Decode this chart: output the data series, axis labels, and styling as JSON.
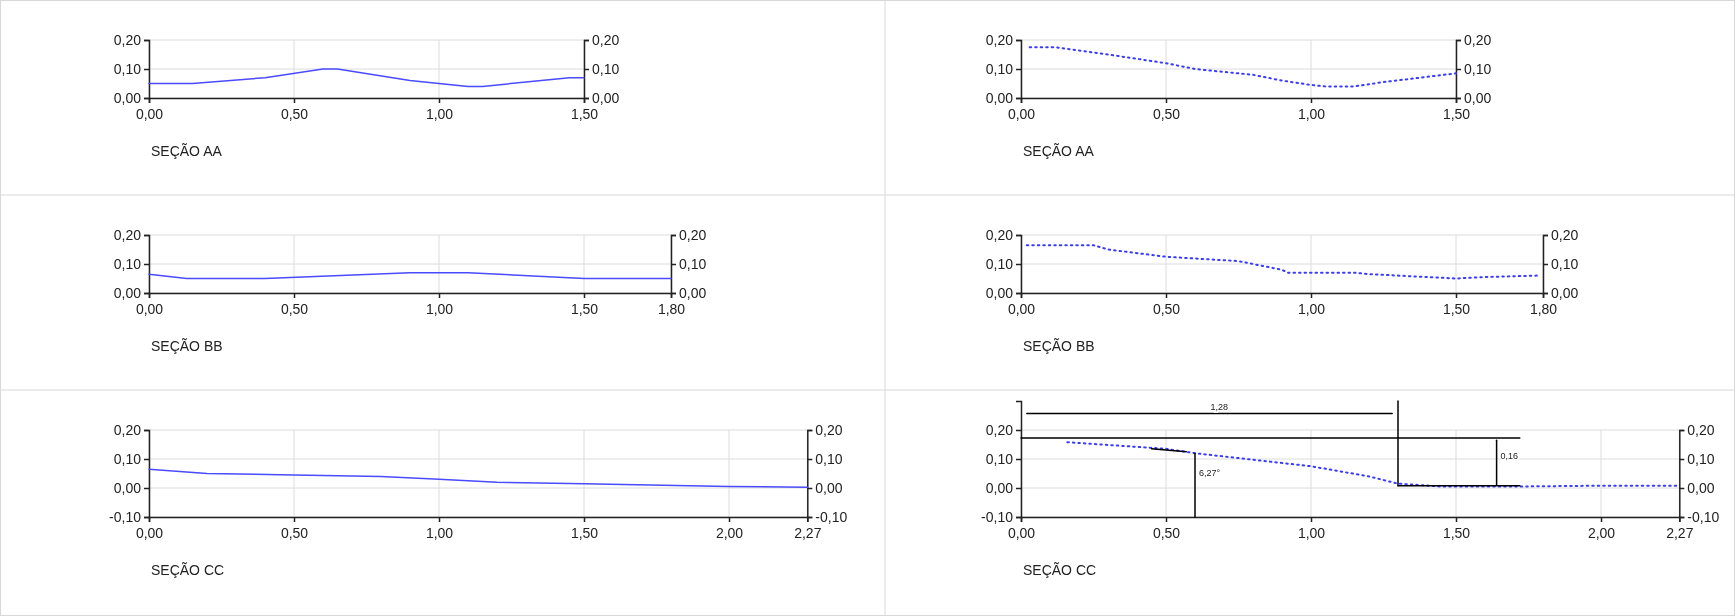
{
  "chart_data": [
    {
      "type": "line",
      "xlabel": "SEÇÃO AA",
      "grid": true,
      "line_style": "solid",
      "xlim": [
        0,
        1.5
      ],
      "xticks": [
        {
          "value": 0,
          "label": "0,00"
        },
        {
          "value": 0.5,
          "label": "0,50"
        },
        {
          "value": 1,
          "label": "1,00"
        },
        {
          "value": 1.5,
          "label": "1,50"
        }
      ],
      "ylim": [
        0,
        0.2
      ],
      "yticks": [
        {
          "value": 0,
          "label": "0,00"
        },
        {
          "value": 0.1,
          "label": "0,10"
        },
        {
          "value": 0.2,
          "label": "0,20"
        }
      ],
      "y2lim": [
        0,
        0.2
      ],
      "y2ticks": [
        {
          "value": 0,
          "label": "0,00"
        },
        {
          "value": 0.1,
          "label": "0,10"
        },
        {
          "value": 0.2,
          "label": "0,20"
        }
      ],
      "series": [
        {
          "color": "#4a4aff",
          "x": [
            0,
            0.15,
            0.4,
            0.6,
            0.65,
            0.9,
            1.1,
            1.15,
            1.45,
            1.5
          ],
          "values": [
            0.05,
            0.05,
            0.07,
            0.1,
            0.1,
            0.06,
            0.04,
            0.04,
            0.07,
            0.07
          ]
        }
      ]
    },
    {
      "type": "line",
      "xlabel": "SEÇÃO AA",
      "grid": true,
      "line_style": "dotted",
      "xlim": [
        0,
        1.5
      ],
      "xticks": [
        {
          "value": 0,
          "label": "0,00"
        },
        {
          "value": 0.5,
          "label": "0,50"
        },
        {
          "value": 1,
          "label": "1,00"
        },
        {
          "value": 1.5,
          "label": "1,50"
        }
      ],
      "ylim": [
        0,
        0.2
      ],
      "yticks": [
        {
          "value": 0,
          "label": "0,00"
        },
        {
          "value": 0.1,
          "label": "0,10"
        },
        {
          "value": 0.2,
          "label": "0,20"
        }
      ],
      "y2lim": [
        0,
        0.2
      ],
      "y2ticks": [
        {
          "value": 0,
          "label": "0,00"
        },
        {
          "value": 0.1,
          "label": "0,10"
        },
        {
          "value": 0.2,
          "label": "0,20"
        }
      ],
      "series": [
        {
          "color": "#3a3aff",
          "x": [
            0.03,
            0.12,
            0.3,
            0.5,
            0.6,
            0.8,
            0.9,
            1.0,
            1.05,
            1.15,
            1.25,
            1.5
          ],
          "values": [
            0.175,
            0.175,
            0.15,
            0.12,
            0.1,
            0.08,
            0.06,
            0.045,
            0.04,
            0.04,
            0.055,
            0.085
          ]
        }
      ]
    },
    {
      "type": "line",
      "xlabel": "SEÇÃO BB",
      "grid": true,
      "line_style": "solid",
      "xlim": [
        0,
        1.8
      ],
      "xticks": [
        {
          "value": 0,
          "label": "0,00"
        },
        {
          "value": 0.5,
          "label": "0,50"
        },
        {
          "value": 1,
          "label": "1,00"
        },
        {
          "value": 1.5,
          "label": "1,50"
        },
        {
          "value": 1.8,
          "label": "1,80"
        }
      ],
      "ylim": [
        0,
        0.2
      ],
      "yticks": [
        {
          "value": 0,
          "label": "0,00"
        },
        {
          "value": 0.1,
          "label": "0,10"
        },
        {
          "value": 0.2,
          "label": "0,20"
        }
      ],
      "y2lim": [
        0,
        0.2
      ],
      "y2ticks": [
        {
          "value": 0,
          "label": "0,00"
        },
        {
          "value": 0.1,
          "label": "0,10"
        },
        {
          "value": 0.2,
          "label": "0,20"
        }
      ],
      "series": [
        {
          "color": "#4a4aff",
          "x": [
            0,
            0.13,
            0.4,
            0.9,
            1.1,
            1.5,
            1.8
          ],
          "values": [
            0.065,
            0.05,
            0.05,
            0.07,
            0.07,
            0.05,
            0.05
          ]
        }
      ]
    },
    {
      "type": "line",
      "xlabel": "SEÇÃO BB",
      "grid": true,
      "line_style": "dotted",
      "xlim": [
        0,
        1.8
      ],
      "xticks": [
        {
          "value": 0,
          "label": "0,00"
        },
        {
          "value": 0.5,
          "label": "0,50"
        },
        {
          "value": 1,
          "label": "1,00"
        },
        {
          "value": 1.5,
          "label": "1,50"
        },
        {
          "value": 1.8,
          "label": "1,80"
        }
      ],
      "ylim": [
        0,
        0.2
      ],
      "yticks": [
        {
          "value": 0,
          "label": "0,00"
        },
        {
          "value": 0.1,
          "label": "0,10"
        },
        {
          "value": 0.2,
          "label": "0,20"
        }
      ],
      "y2lim": [
        0,
        0.2
      ],
      "y2ticks": [
        {
          "value": 0,
          "label": "0,00"
        },
        {
          "value": 0.1,
          "label": "0,10"
        },
        {
          "value": 0.2,
          "label": "0,20"
        }
      ],
      "series": [
        {
          "color": "#3a3aff",
          "x": [
            0.02,
            0.25,
            0.3,
            0.5,
            0.75,
            0.9,
            0.92,
            1.15,
            1.2,
            1.5,
            1.6,
            1.78
          ],
          "values": [
            0.165,
            0.165,
            0.15,
            0.125,
            0.11,
            0.08,
            0.07,
            0.07,
            0.065,
            0.05,
            0.055,
            0.06
          ]
        }
      ]
    },
    {
      "type": "line",
      "xlabel": "SEÇÃO CC",
      "grid": true,
      "line_style": "solid",
      "xlim": [
        0,
        2.27
      ],
      "xticks": [
        {
          "value": 0,
          "label": "0,00"
        },
        {
          "value": 0.5,
          "label": "0,50"
        },
        {
          "value": 1,
          "label": "1,00"
        },
        {
          "value": 1.5,
          "label": "1,50"
        },
        {
          "value": 2,
          "label": "2,00"
        },
        {
          "value": 2.27,
          "label": "2,27"
        }
      ],
      "ylim": [
        -0.1,
        0.2
      ],
      "yticks": [
        {
          "value": -0.1,
          "label": "-0,10"
        },
        {
          "value": 0,
          "label": "0,00"
        },
        {
          "value": 0.1,
          "label": "0,10"
        },
        {
          "value": 0.2,
          "label": "0,20"
        }
      ],
      "y2lim": [
        -0.1,
        0.2
      ],
      "y2ticks": [
        {
          "value": -0.1,
          "label": "-0,10"
        },
        {
          "value": 0,
          "label": "0,00"
        },
        {
          "value": 0.1,
          "label": "0,10"
        },
        {
          "value": 0.2,
          "label": "0,20"
        }
      ],
      "series": [
        {
          "color": "#4a4aff",
          "x": [
            0,
            0.2,
            0.5,
            0.8,
            1.0,
            1.2,
            1.5,
            2.0,
            2.27
          ],
          "values": [
            0.065,
            0.05,
            0.045,
            0.04,
            0.03,
            0.02,
            0.015,
            0.005,
            0.003
          ]
        }
      ]
    },
    {
      "type": "line",
      "xlabel": "SEÇÃO CC",
      "grid": true,
      "line_style": "dotted",
      "xlim": [
        0,
        2.27
      ],
      "xticks": [
        {
          "value": 0,
          "label": "0,00"
        },
        {
          "value": 0.5,
          "label": "0,50"
        },
        {
          "value": 1,
          "label": "1,00"
        },
        {
          "value": 1.5,
          "label": "1,50"
        },
        {
          "value": 2,
          "label": "2,00"
        },
        {
          "value": 2.27,
          "label": "2,27"
        }
      ],
      "ylim": [
        -0.1,
        0.3
      ],
      "yticks": [
        {
          "value": -0.1,
          "label": "-0,10"
        },
        {
          "value": 0,
          "label": "0,00"
        },
        {
          "value": 0.1,
          "label": "0,10"
        },
        {
          "value": 0.2,
          "label": "0,20"
        }
      ],
      "y2lim": [
        -0.1,
        0.2
      ],
      "y2ticks": [
        {
          "value": -0.1,
          "label": "-0,10"
        },
        {
          "value": 0,
          "label": "0,00"
        },
        {
          "value": 0.1,
          "label": "0,10"
        },
        {
          "value": 0.2,
          "label": "0,20"
        }
      ],
      "series": [
        {
          "color": "#3a3aff",
          "x": [
            0.16,
            0.5,
            0.6,
            1.0,
            1.2,
            1.3,
            1.45,
            1.7,
            2.0,
            2.27
          ],
          "values": [
            0.158,
            0.135,
            0.12,
            0.075,
            0.04,
            0.015,
            0.005,
            0.005,
            0.008,
            0.008
          ]
        },
        {
          "type": "line",
          "color": "#000000",
          "line_style": "solid",
          "x": [
            0,
            1.72
          ],
          "values": [
            0.172,
            0.172
          ]
        },
        {
          "type": "line",
          "color": "#000000",
          "line_style": "solid",
          "x": [
            1.3,
            1.3
          ],
          "values": [
            0.3,
            0.008
          ]
        },
        {
          "type": "line",
          "color": "#000000",
          "line_style": "solid",
          "x": [
            1.3,
            1.72
          ],
          "values": [
            0.008,
            0.008
          ]
        },
        {
          "type": "line",
          "color": "#000000",
          "line_style": "solid",
          "x": [
            0.02,
            1.28
          ],
          "values": [
            0.257,
            0.257
          ]
        },
        {
          "type": "line",
          "color": "#000000",
          "line_style": "solid",
          "x": [
            1.64,
            1.64
          ],
          "values": [
            0.165,
            0.01
          ]
        },
        {
          "type": "line",
          "color": "#000000",
          "line_style": "solid",
          "x": [
            0.45,
            0.57
          ],
          "values": [
            0.135,
            0.125
          ]
        },
        {
          "type": "line",
          "color": "#000000",
          "line_style": "solid",
          "x": [
            0.6,
            0.6
          ],
          "values": [
            0.12,
            -0.1
          ]
        }
      ],
      "annotations": [
        {
          "text": "1,28",
          "x": 0.64,
          "y": 0.257
        },
        {
          "text": "6,27°",
          "x": 0.6,
          "y": 0.03
        },
        {
          "text": "0,16",
          "x": 1.64,
          "y": 0.09
        }
      ]
    }
  ]
}
